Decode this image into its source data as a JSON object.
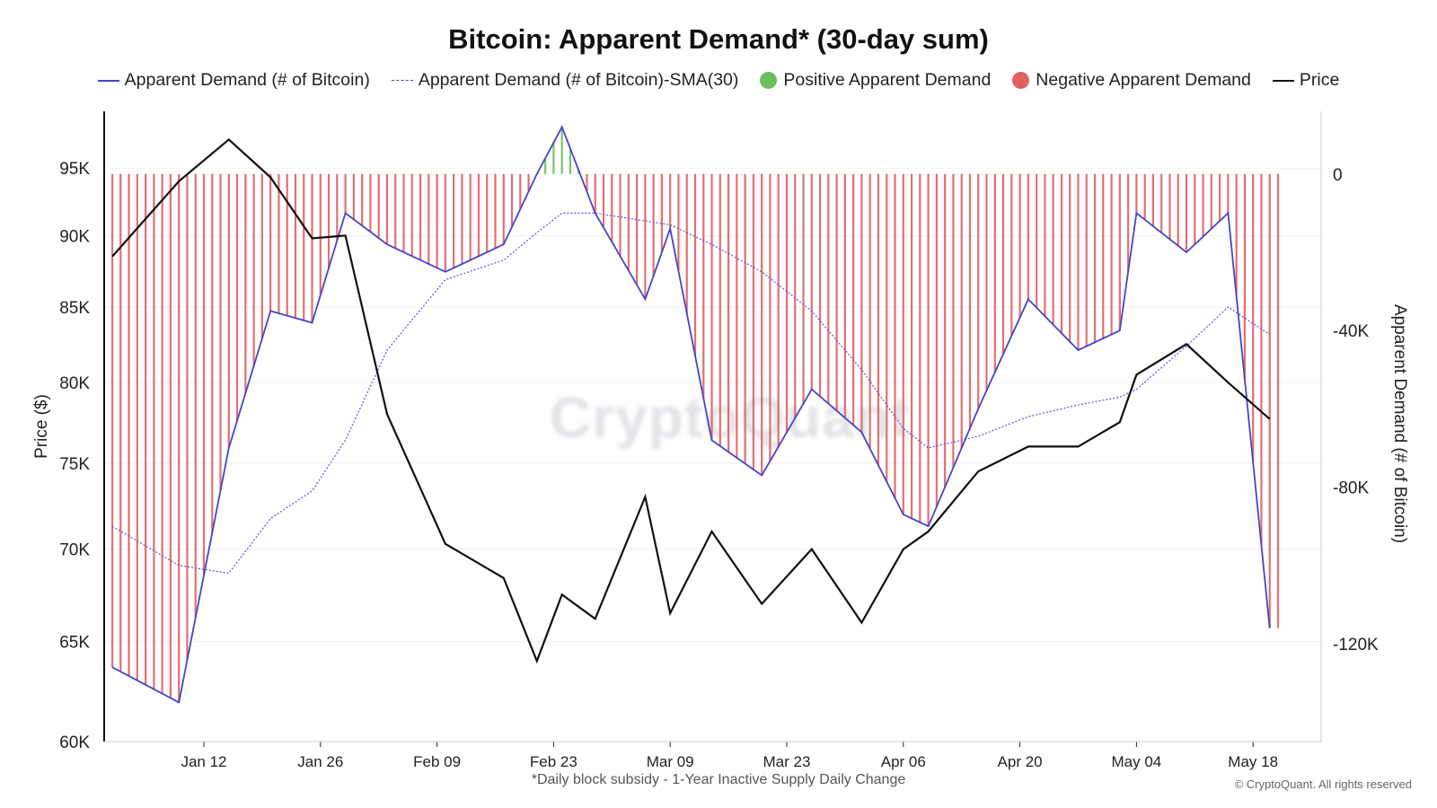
{
  "title": "Bitcoin: Apparent Demand* (30-day sum)",
  "legend": {
    "demand": "Apparent Demand (# of Bitcoin)",
    "sma": "Apparent Demand (# of Bitcoin)-SMA(30)",
    "positive": "Positive Apparent Demand",
    "negative": "Negative Apparent Demand",
    "price": "Price"
  },
  "footnote": "*Daily block subsidy - 1-Year Inactive Supply Daily Change",
  "copyright": "© CryptoQuant. All rights reserved",
  "watermark": "CryptoQuant",
  "colors": {
    "demand": "#4444cc",
    "sma": "#5555dd",
    "positive": "#6abf5a",
    "negative": "#e06060",
    "price": "#111111"
  },
  "chart_data": {
    "type": "line",
    "x_ticks": [
      "Jan 12",
      "Jan 26",
      "Feb 09",
      "Feb 23",
      "Mar 09",
      "Mar 23",
      "Apr 06",
      "Apr 20",
      "May 04",
      "May 18"
    ],
    "ylabel_left": "Price ($)",
    "ylabel_right": "Apparent Demand (# of Bitcoin)",
    "left_ticks": [
      "95K",
      "90K",
      "85K",
      "80K",
      "75K",
      "70K",
      "65K",
      "60K"
    ],
    "right_ticks": [
      "0",
      "-40K",
      "-80K",
      "-120K"
    ],
    "left_scale": "log",
    "ylim_left": [
      60000,
      98000
    ],
    "ylim_right": [
      -145000,
      16000
    ],
    "x": [
      "Jan 01",
      "Jan 09",
      "Jan 15",
      "Jan 20",
      "Jan 25",
      "Jan 29",
      "Feb 03",
      "Feb 10",
      "Feb 17",
      "Feb 21",
      "Feb 24",
      "Feb 28",
      "Mar 06",
      "Mar 09",
      "Mar 14",
      "Mar 20",
      "Mar 26",
      "Apr 01",
      "Apr 06",
      "Apr 09",
      "Apr 15",
      "Apr 21",
      "Apr 27",
      "May 02",
      "May 04",
      "May 10",
      "May 15",
      "May 20"
    ],
    "series": [
      {
        "name": "Apparent Demand (# of Bitcoin)",
        "values": [
          -126000,
          -135000,
          -70000,
          -35000,
          -38000,
          -10000,
          -18000,
          -25000,
          -18000,
          0,
          12000,
          -10000,
          -32000,
          -14000,
          -68000,
          -77000,
          -55000,
          -66000,
          -87000,
          -90000,
          -60000,
          -32000,
          -45000,
          -40000,
          -10000,
          -20000,
          -10000,
          -116000
        ]
      },
      {
        "name": "Apparent Demand (# of Bitcoin)-SMA(30)",
        "values": [
          -90000,
          -100000,
          -102000,
          -88000,
          -81000,
          -68000,
          -45000,
          -27000,
          -22000,
          -15000,
          -10000,
          -10000,
          -12000,
          -13000,
          -18000,
          -25000,
          -35000,
          -50000,
          -65000,
          -70000,
          -67000,
          -62000,
          -59000,
          -57000,
          -55000,
          -44000,
          -34000,
          -41000
        ]
      },
      {
        "name": "Price",
        "values": [
          88500,
          94000,
          97200,
          94300,
          89800,
          90000,
          78000,
          70300,
          68400,
          64000,
          67500,
          66200,
          73000,
          66500,
          71000,
          67000,
          70000,
          66000,
          70000,
          71000,
          74500,
          76000,
          76000,
          77500,
          80500,
          82500,
          80000,
          77700
        ]
      }
    ]
  }
}
